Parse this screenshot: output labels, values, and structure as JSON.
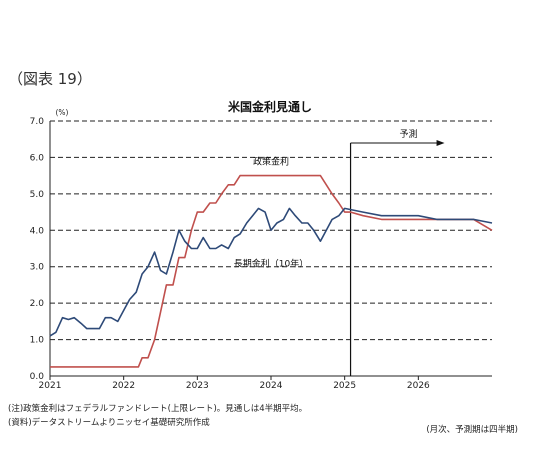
{
  "figure_label": "（図表 19）",
  "notes": {
    "note": "(注)政策金利はフェデラルファンドレート(上限レート)。見通しは4半期平均。",
    "source": "(資料)データストリームよりニッセイ基礎研究所作成",
    "period": "(月次、予測期は四半期)"
  },
  "colors": {
    "policy_rate": "#c0504d",
    "long_rate": "#2e4a78",
    "grid": "#222222",
    "axis": "#222222"
  },
  "chart_data": {
    "type": "line",
    "title": "米国金利見通し",
    "ylabel": "(%)",
    "xlabel": "",
    "ylim": [
      0,
      7
    ],
    "yticks": [
      "0.0",
      "1.0",
      "2.0",
      "3.0",
      "4.0",
      "5.0",
      "6.0",
      "7.0"
    ],
    "xlim": [
      2021.0,
      2027.0
    ],
    "xticks": [
      "2021",
      "2022",
      "2023",
      "2024",
      "2025",
      "2026"
    ],
    "grid": "horizontal dashed",
    "forecast_start": 2025.08,
    "forecast_label": "予測",
    "series": [
      {
        "name": "政策金利",
        "color": "#c0504d",
        "x": [
          2021.0,
          2022.2,
          2022.25,
          2022.33,
          2022.42,
          2022.5,
          2022.58,
          2022.67,
          2022.75,
          2022.83,
          2022.92,
          2023.0,
          2023.08,
          2023.17,
          2023.25,
          2023.33,
          2023.42,
          2023.5,
          2023.58,
          2024.67,
          2024.75,
          2024.83,
          2024.92,
          2025.0,
          2025.08,
          2025.25,
          2025.5,
          2025.75,
          2026.0,
          2026.25,
          2026.5,
          2026.75,
          2027.0
        ],
        "y": [
          0.25,
          0.25,
          0.5,
          0.5,
          1.0,
          1.75,
          2.5,
          2.5,
          3.25,
          3.25,
          4.0,
          4.5,
          4.5,
          4.75,
          4.75,
          5.0,
          5.25,
          5.25,
          5.5,
          5.5,
          5.25,
          5.0,
          4.75,
          4.5,
          4.5,
          4.4,
          4.3,
          4.3,
          4.3,
          4.3,
          4.3,
          4.3,
          4.0
        ]
      },
      {
        "name": "長期金利（10年）",
        "color": "#2e4a78",
        "x": [
          2021.0,
          2021.08,
          2021.17,
          2021.25,
          2021.33,
          2021.42,
          2021.5,
          2021.58,
          2021.67,
          2021.75,
          2021.83,
          2021.92,
          2022.0,
          2022.08,
          2022.17,
          2022.25,
          2022.33,
          2022.42,
          2022.5,
          2022.58,
          2022.67,
          2022.75,
          2022.83,
          2022.92,
          2023.0,
          2023.08,
          2023.17,
          2023.25,
          2023.33,
          2023.42,
          2023.5,
          2023.58,
          2023.67,
          2023.75,
          2023.83,
          2023.92,
          2024.0,
          2024.08,
          2024.17,
          2024.25,
          2024.33,
          2024.42,
          2024.5,
          2024.58,
          2024.67,
          2024.75,
          2024.83,
          2024.92,
          2025.0,
          2025.25,
          2025.5,
          2025.75,
          2026.0,
          2026.25,
          2026.5,
          2026.75,
          2027.0
        ],
        "y": [
          1.1,
          1.2,
          1.6,
          1.55,
          1.6,
          1.45,
          1.3,
          1.3,
          1.3,
          1.6,
          1.6,
          1.5,
          1.8,
          2.1,
          2.3,
          2.8,
          3.0,
          3.4,
          2.9,
          2.8,
          3.4,
          4.0,
          3.7,
          3.5,
          3.5,
          3.8,
          3.5,
          3.5,
          3.6,
          3.5,
          3.8,
          3.9,
          4.2,
          4.4,
          4.6,
          4.5,
          4.0,
          4.2,
          4.3,
          4.6,
          4.4,
          4.2,
          4.2,
          4.0,
          3.7,
          4.0,
          4.3,
          4.4,
          4.6,
          4.5,
          4.4,
          4.4,
          4.4,
          4.3,
          4.3,
          4.3,
          4.2
        ]
      }
    ],
    "annotations": [
      {
        "text": "政策金利",
        "series": "政策金利"
      },
      {
        "text": "長期金利（10年）",
        "series": "長期金利（10年）"
      }
    ]
  }
}
